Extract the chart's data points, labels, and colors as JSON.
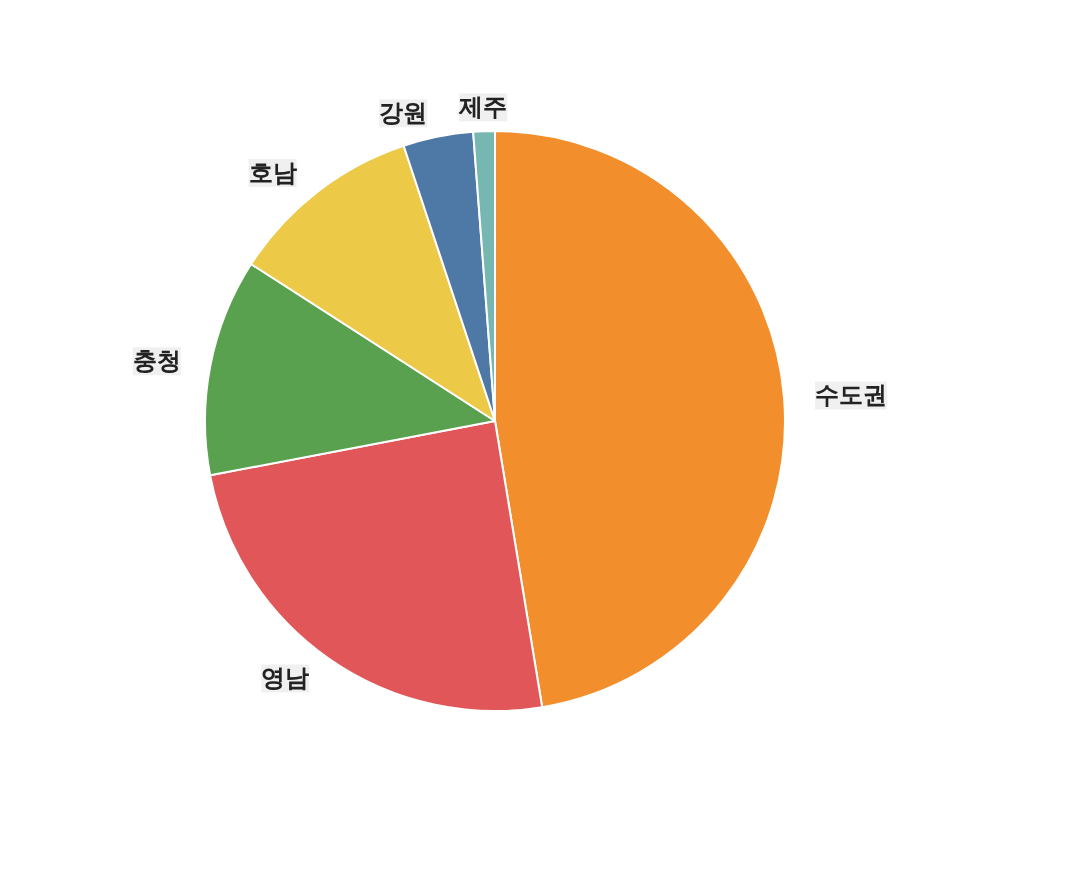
{
  "chart_data": {
    "type": "pie",
    "categories": [
      "수도권",
      "영남",
      "충청",
      "호남",
      "강원",
      "제주"
    ],
    "values": [
      47.4,
      24.6,
      12.1,
      10.8,
      3.9,
      1.2
    ],
    "colors": [
      "#f28e2b",
      "#e15759",
      "#59a14f",
      "#edc948",
      "#4e79a7",
      "#76b7b2"
    ]
  }
}
